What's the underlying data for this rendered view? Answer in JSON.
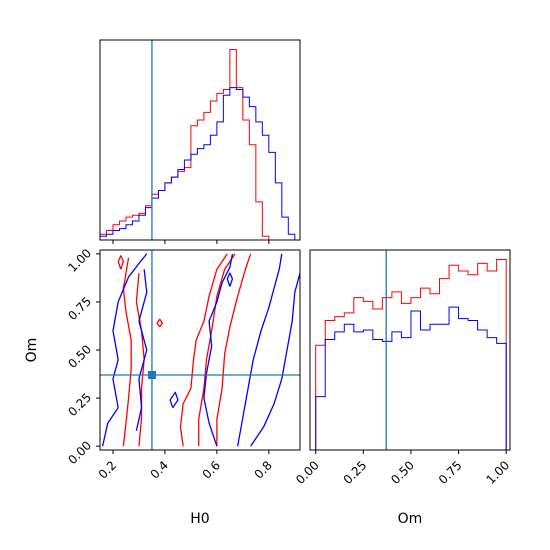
{
  "chart_data": {
    "type": "corner",
    "parameters": [
      "H0",
      "Om"
    ],
    "truth": {
      "H0": 0.35,
      "Om": 0.37
    },
    "colors": {
      "red_run": "#ff0000",
      "blue_run": "#0000ff",
      "truth": "#1f77b4"
    },
    "grid": false,
    "panels": [
      {
        "id": "H0-marginal",
        "type": "histogram-step",
        "xlim": [
          0.15,
          0.92
        ],
        "x_ticks": [
          0.2,
          0.4,
          0.6,
          0.8
        ],
        "bins_x": [
          0.15,
          0.175,
          0.2,
          0.225,
          0.25,
          0.275,
          0.3,
          0.325,
          0.35,
          0.375,
          0.4,
          0.425,
          0.45,
          0.475,
          0.5,
          0.525,
          0.55,
          0.575,
          0.6,
          0.625,
          0.65,
          0.675,
          0.7,
          0.725,
          0.75,
          0.775,
          0.8,
          0.825,
          0.85,
          0.875,
          0.9
        ],
        "series": [
          {
            "name": "",
            "color": "red",
            "values": [
              0.03,
              0.05,
              0.08,
              0.1,
              0.12,
              0.13,
              0.14,
              0.18,
              0.24,
              0.26,
              0.3,
              0.33,
              0.36,
              0.38,
              0.6,
              0.63,
              0.67,
              0.73,
              0.77,
              0.79,
              1.0,
              0.8,
              0.63,
              0.5,
              0.2,
              0.02,
              0,
              0,
              0,
              0
            ]
          },
          {
            "name": "",
            "color": "blue",
            "values": [
              0.02,
              0.03,
              0.05,
              0.06,
              0.08,
              0.1,
              0.13,
              0.17,
              0.22,
              0.26,
              0.3,
              0.33,
              0.37,
              0.42,
              0.45,
              0.48,
              0.5,
              0.55,
              0.62,
              0.76,
              0.8,
              0.79,
              0.75,
              0.7,
              0.62,
              0.55,
              0.46,
              0.3,
              0.12,
              0.03
            ]
          }
        ]
      },
      {
        "id": "H0-Om-joint",
        "type": "contour",
        "xlim": [
          0.15,
          0.92
        ],
        "ylim": [
          -0.02,
          1.02
        ],
        "x_ticks": [
          0.2,
          0.4,
          0.6,
          0.8
        ],
        "y_ticks": [
          0.0,
          0.25,
          0.5,
          0.75,
          1.0
        ],
        "xlabel": "H0",
        "ylabel": "Om",
        "series": [
          {
            "name": "",
            "color": "red",
            "contours": [
              [
                [
                  0.47,
                  0.0
                ],
                [
                  0.46,
                  0.1
                ],
                [
                  0.47,
                  0.22
                ],
                [
                  0.5,
                  0.3
                ],
                [
                  0.51,
                  0.45
                ],
                [
                  0.52,
                  0.55
                ],
                [
                  0.55,
                  0.65
                ],
                [
                  0.57,
                  0.78
                ],
                [
                  0.6,
                  0.92
                ],
                [
                  0.64,
                  1.0
                ]
              ],
              [
                [
                  0.6,
                  0.0
                ],
                [
                  0.6,
                  0.14
                ],
                [
                  0.62,
                  0.3
                ],
                [
                  0.63,
                  0.48
                ],
                [
                  0.65,
                  0.62
                ],
                [
                  0.68,
                  0.78
                ],
                [
                  0.71,
                  0.92
                ],
                [
                  0.73,
                  1.0
                ]
              ],
              [
                [
                  0.53,
                  0.0
                ],
                [
                  0.53,
                  0.14
                ],
                [
                  0.55,
                  0.3
                ],
                [
                  0.56,
                  0.45
                ],
                [
                  0.58,
                  0.6
                ],
                [
                  0.6,
                  0.78
                ],
                [
                  0.63,
                  0.92
                ],
                [
                  0.67,
                  1.0
                ]
              ],
              [
                [
                  0.24,
                  0.0
                ],
                [
                  0.25,
                  0.12
                ],
                [
                  0.26,
                  0.25
                ],
                [
                  0.27,
                  0.4
                ],
                [
                  0.27,
                  0.55
                ],
                [
                  0.25,
                  0.7
                ],
                [
                  0.24,
                  0.82
                ],
                [
                  0.26,
                  0.98
                ]
              ],
              [
                [
                  0.3,
                  0.0
                ],
                [
                  0.31,
                  0.15
                ],
                [
                  0.31,
                  0.3
                ],
                [
                  0.32,
                  0.45
                ],
                [
                  0.31,
                  0.6
                ],
                [
                  0.29,
                  0.75
                ],
                [
                  0.3,
                  0.9
                ]
              ],
              [
                [
                  0.38,
                  0.62
                ],
                [
                  0.39,
                  0.64
                ],
                [
                  0.38,
                  0.66
                ],
                [
                  0.37,
                  0.64
                ],
                [
                  0.38,
                  0.62
                ]
              ],
              [
                [
                  0.23,
                  0.92
                ],
                [
                  0.24,
                  0.96
                ],
                [
                  0.23,
                  0.99
                ],
                [
                  0.22,
                  0.96
                ],
                [
                  0.23,
                  0.92
                ]
              ]
            ]
          },
          {
            "name": "",
            "color": "blue",
            "contours": [
              [
                [
                  0.16,
                  0.0
                ],
                [
                  0.18,
                  0.12
                ],
                [
                  0.22,
                  0.2
                ],
                [
                  0.2,
                  0.35
                ],
                [
                  0.22,
                  0.45
                ],
                [
                  0.2,
                  0.6
                ],
                [
                  0.22,
                  0.75
                ],
                [
                  0.26,
                  0.88
                ],
                [
                  0.3,
                  0.95
                ],
                [
                  0.33,
                  1.0
                ]
              ],
              [
                [
                  0.29,
                  0.08
                ],
                [
                  0.31,
                  0.2
                ],
                [
                  0.3,
                  0.35
                ],
                [
                  0.33,
                  0.5
                ],
                [
                  0.3,
                  0.65
                ],
                [
                  0.33,
                  0.8
                ],
                [
                  0.32,
                  0.92
                ]
              ],
              [
                [
                  0.6,
                  0.0
                ],
                [
                  0.57,
                  0.12
                ],
                [
                  0.55,
                  0.25
                ],
                [
                  0.56,
                  0.38
                ],
                [
                  0.58,
                  0.52
                ],
                [
                  0.57,
                  0.65
                ],
                [
                  0.6,
                  0.75
                ],
                [
                  0.62,
                  0.85
                ],
                [
                  0.65,
                  0.93
                ],
                [
                  0.66,
                  1.0
                ]
              ],
              [
                [
                  0.68,
                  0.0
                ],
                [
                  0.7,
                  0.15
                ],
                [
                  0.72,
                  0.3
                ],
                [
                  0.74,
                  0.45
                ],
                [
                  0.77,
                  0.6
                ],
                [
                  0.8,
                  0.72
                ],
                [
                  0.82,
                  0.82
                ],
                [
                  0.84,
                  0.92
                ],
                [
                  0.85,
                  1.0
                ]
              ],
              [
                [
                  0.73,
                  0.0
                ],
                [
                  0.78,
                  0.1
                ],
                [
                  0.82,
                  0.22
                ],
                [
                  0.85,
                  0.35
                ],
                [
                  0.87,
                  0.5
                ],
                [
                  0.89,
                  0.65
                ],
                [
                  0.9,
                  0.8
                ],
                [
                  0.92,
                  0.9
                ]
              ],
              [
                [
                  0.43,
                  0.2
                ],
                [
                  0.45,
                  0.24
                ],
                [
                  0.44,
                  0.28
                ],
                [
                  0.42,
                  0.24
                ],
                [
                  0.43,
                  0.2
                ]
              ],
              [
                [
                  0.65,
                  0.83
                ],
                [
                  0.66,
                  0.87
                ],
                [
                  0.65,
                  0.9
                ],
                [
                  0.64,
                  0.87
                ],
                [
                  0.65,
                  0.83
                ]
              ]
            ]
          }
        ]
      },
      {
        "id": "Om-marginal",
        "type": "histogram-step",
        "xlim": [
          -0.03,
          1.02
        ],
        "x_ticks": [
          0.0,
          0.25,
          0.5,
          0.75,
          1.0
        ],
        "xlabel": "Om",
        "bins_x": [
          0.0,
          0.05,
          0.1,
          0.15,
          0.2,
          0.25,
          0.3,
          0.35,
          0.4,
          0.45,
          0.5,
          0.55,
          0.6,
          0.65,
          0.7,
          0.75,
          0.8,
          0.85,
          0.9,
          0.95,
          1.0
        ],
        "series": [
          {
            "name": "",
            "color": "red",
            "values": [
              0.55,
              0.68,
              0.7,
              0.72,
              0.8,
              0.78,
              0.74,
              0.8,
              0.83,
              0.77,
              0.8,
              0.85,
              0.82,
              0.9,
              0.97,
              0.94,
              0.92,
              0.98,
              0.94,
              1.0
            ]
          },
          {
            "name": "",
            "color": "blue",
            "values": [
              0.28,
              0.58,
              0.62,
              0.66,
              0.62,
              0.63,
              0.58,
              0.57,
              0.62,
              0.59,
              0.73,
              0.63,
              0.66,
              0.66,
              0.75,
              0.69,
              0.68,
              0.63,
              0.59,
              0.56
            ]
          }
        ]
      }
    ]
  }
}
